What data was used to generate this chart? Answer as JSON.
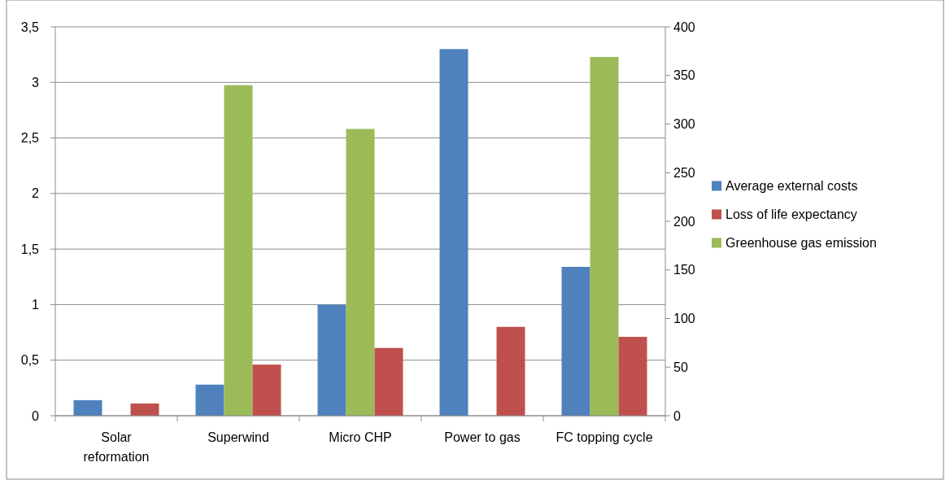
{
  "chart_data": {
    "type": "bar",
    "categories": [
      "Solar reformation",
      "Superwind",
      "Micro CHP",
      "Power to gas",
      "FC topping cycle"
    ],
    "series": [
      {
        "name": "Average external costs",
        "color": "#4f81bd",
        "values": [
          0.14,
          0.28,
          1.0,
          3.3,
          1.34
        ]
      },
      {
        "name": "Loss of life expectancy",
        "color": "#c0504d",
        "values": [
          0.11,
          0.46,
          0.61,
          0.8,
          0.71
        ]
      },
      {
        "name": "Greenhouse gas emission",
        "color": "#9bbb59",
        "axis": "y2",
        "values": [
          null,
          340,
          295,
          null,
          369
        ]
      }
    ],
    "ylim": [
      0,
      3.5
    ],
    "yticks": [
      0,
      {
        "value": 0.5,
        "label": "0,5"
      },
      1,
      {
        "value": 1.5,
        "label": "1,5"
      },
      2,
      {
        "value": 2.5,
        "label": "2,5"
      },
      3,
      {
        "value": 3.5,
        "label": "3,5"
      }
    ],
    "y2lim": [
      0,
      400
    ],
    "y2ticks": [
      0,
      50,
      100,
      150,
      200,
      250,
      300,
      350,
      400
    ],
    "grid": "y",
    "legend": "right"
  }
}
